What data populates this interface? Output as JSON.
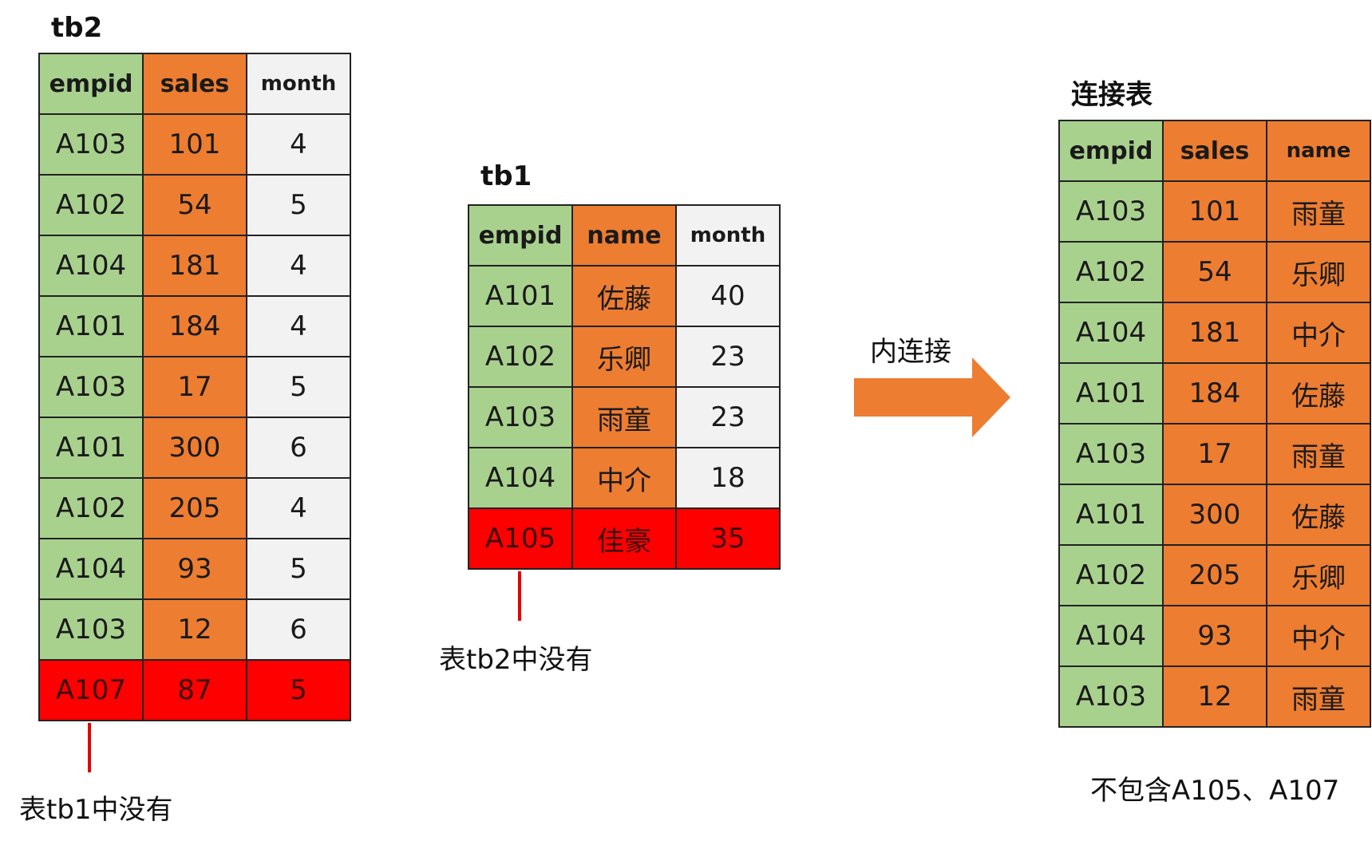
{
  "tb2": {
    "title": "tb2",
    "headers": [
      "empid",
      "sales",
      "month"
    ],
    "rows": [
      [
        "A103",
        "101",
        "4"
      ],
      [
        "A102",
        "54",
        "5"
      ],
      [
        "A104",
        "181",
        "4"
      ],
      [
        "A101",
        "184",
        "4"
      ],
      [
        "A103",
        "17",
        "5"
      ],
      [
        "A101",
        "300",
        "6"
      ],
      [
        "A102",
        "205",
        "4"
      ],
      [
        "A104",
        "93",
        "5"
      ],
      [
        "A103",
        "12",
        "6"
      ],
      [
        "A107",
        "87",
        "5"
      ]
    ],
    "note": "表tb1中没有"
  },
  "tb1": {
    "title": "tb1",
    "headers": [
      "empid",
      "name",
      "month"
    ],
    "rows": [
      [
        "A101",
        "佐藤",
        "40"
      ],
      [
        "A102",
        "乐卿",
        "23"
      ],
      [
        "A103",
        "雨童",
        "23"
      ],
      [
        "A104",
        "中介",
        "18"
      ],
      [
        "A105",
        "佳豪",
        "35"
      ]
    ],
    "note": "表tb2中没有"
  },
  "arrow_label": "内连接",
  "joined": {
    "title": "连接表",
    "headers": [
      "empid",
      "sales",
      "name"
    ],
    "rows": [
      [
        "A103",
        "101",
        "雨童"
      ],
      [
        "A102",
        "54",
        "乐卿"
      ],
      [
        "A104",
        "181",
        "中介"
      ],
      [
        "A101",
        "184",
        "佐藤"
      ],
      [
        "A103",
        "17",
        "雨童"
      ],
      [
        "A101",
        "300",
        "佐藤"
      ],
      [
        "A102",
        "205",
        "乐卿"
      ],
      [
        "A104",
        "93",
        "中介"
      ],
      [
        "A103",
        "12",
        "雨童"
      ]
    ],
    "note": "不包含A105、A107"
  },
  "colors": {
    "green": "#a9d18e",
    "orange": "#ed7d31",
    "gray": "#f2f2f2",
    "red": "#ff0000",
    "arrow": "#ed7d31"
  }
}
